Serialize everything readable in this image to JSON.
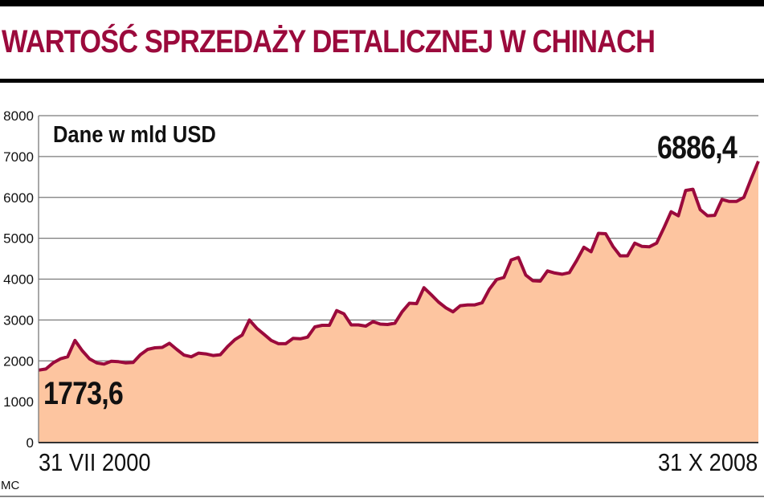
{
  "title": "WARTOŚĆ SPRZEDAŻY DETALICZNEJ W CHINACH",
  "unit_label": "Dane w mld USD",
  "start_label": "1773,6",
  "end_label": "6886,4",
  "x_start_label": "31 VII 2000",
  "x_end_label": "31 X 2008",
  "credit": "MC",
  "colors": {
    "title": "#9b0a3c",
    "line": "#9b0a3c",
    "fill": "#fdc5a0",
    "grid": "#7a7a7a"
  },
  "chart_data": {
    "type": "area",
    "title": "WARTOŚĆ SPRZEDAŻY DETALICZNEJ W CHINACH",
    "subtitle": "Dane w mld USD",
    "xlabel": "",
    "ylabel": "",
    "x_start": "31 VII 2000",
    "x_end": "31 X 2008",
    "ylim": [
      0,
      8000
    ],
    "yticks": [
      0,
      1000,
      2000,
      3000,
      4000,
      5000,
      6000,
      7000,
      8000
    ],
    "grid": true,
    "annotations": [
      {
        "label": "1773,6",
        "position": "start"
      },
      {
        "label": "6886,4",
        "position": "end"
      }
    ],
    "series": [
      {
        "name": "Wartość sprzedaży detalicznej (mld USD)",
        "frequency": "monthly",
        "values": [
          1773.6,
          1800,
          1950,
          2050,
          2100,
          2500,
          2250,
          2050,
          1950,
          1920,
          1990,
          1980,
          1950,
          1960,
          2150,
          2280,
          2320,
          2330,
          2430,
          2280,
          2140,
          2100,
          2190,
          2170,
          2130,
          2150,
          2350,
          2520,
          2630,
          3000,
          2800,
          2650,
          2500,
          2420,
          2420,
          2550,
          2540,
          2580,
          2830,
          2870,
          2870,
          3230,
          3150,
          2880,
          2880,
          2850,
          2960,
          2900,
          2890,
          2920,
          3200,
          3410,
          3400,
          3790,
          3620,
          3440,
          3300,
          3200,
          3350,
          3370,
          3370,
          3420,
          3750,
          3990,
          4040,
          4470,
          4530,
          4100,
          3960,
          3950,
          4200,
          4150,
          4120,
          4160,
          4450,
          4780,
          4670,
          5120,
          5110,
          4800,
          4570,
          4570,
          4880,
          4800,
          4790,
          4880,
          5250,
          5650,
          5550,
          6170,
          6200,
          5700,
          5550,
          5560,
          5950,
          5900,
          5900,
          6000,
          6450,
          6886.4
        ]
      }
    ]
  }
}
